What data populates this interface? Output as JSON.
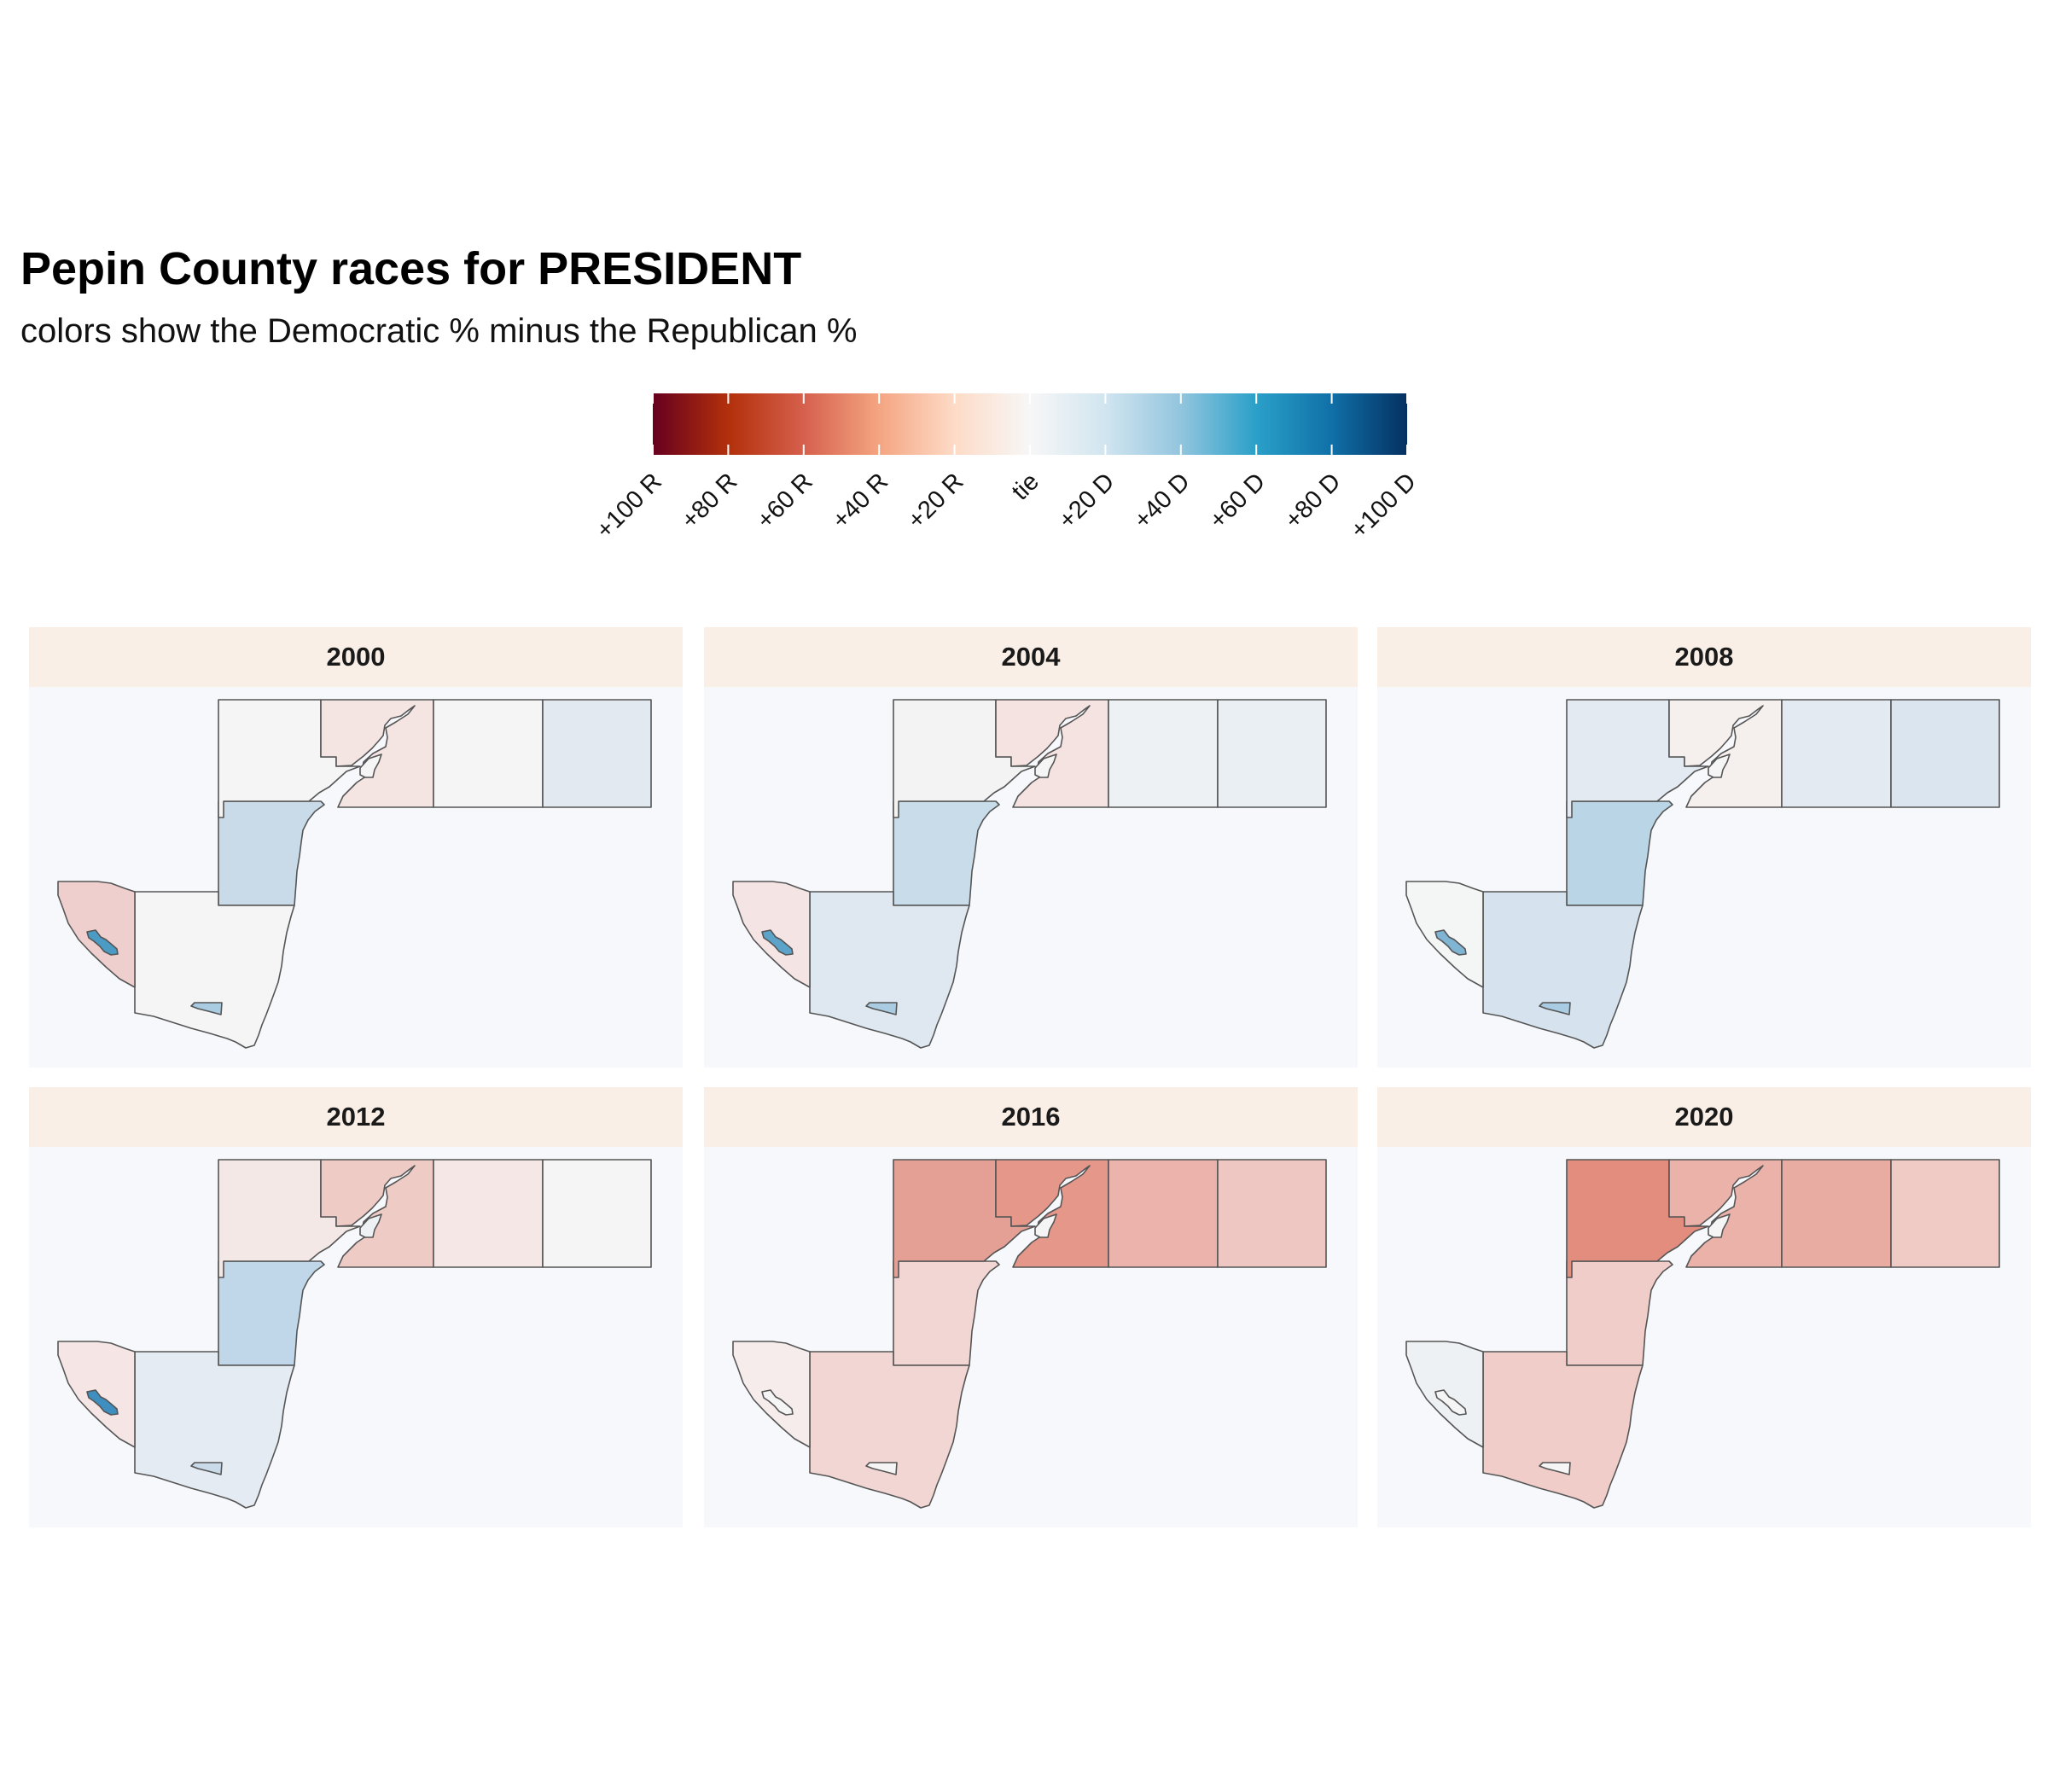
{
  "title": "Pepin County races for PRESIDENT",
  "subtitle": "colors show the Democratic % minus the Republican %",
  "legend": {
    "ticks": [
      {
        "label": "+100 R",
        "margin": -100
      },
      {
        "label": "+80 R",
        "margin": -80
      },
      {
        "label": "+60 R",
        "margin": -60
      },
      {
        "label": "+40 R",
        "margin": -40
      },
      {
        "label": "+20 R",
        "margin": -20
      },
      {
        "label": "tie",
        "margin": 0
      },
      {
        "label": "+20 D",
        "margin": 20
      },
      {
        "label": "+40 D",
        "margin": 40
      },
      {
        "label": "+60 D",
        "margin": 60
      },
      {
        "label": "+80 D",
        "margin": 80
      },
      {
        "label": "+100 D",
        "margin": 100
      }
    ],
    "color_stops": [
      "#67001f",
      "#b2300b",
      "#d6604d",
      "#f4a582",
      "#fddbc7",
      "#f7f7f7",
      "#d1e5f0",
      "#92c5de",
      "#2aa0c8",
      "#1070a8",
      "#053061"
    ]
  },
  "units": [
    "north-west",
    "north-central",
    "pepin-village-top",
    "north-east-1",
    "north-east-2",
    "central-west",
    "south-west",
    "south-west-village",
    "south-central",
    "durand-city"
  ],
  "panels": [
    {
      "year": "2000",
      "colors": {
        "north-west": "#f6f5f5",
        "north-central": "#f4e4e2",
        "pepin-village-top": "#f5f5f5",
        "north-east-1": "#f6f5f5",
        "north-east-2": "#e2e9f1",
        "central-west": "#c9dbe9",
        "south-west": "#efcfcd",
        "south-west-village": "#4b9bc4",
        "south-central": "#f6f5f5",
        "durand-city": "#a9cce2"
      }
    },
    {
      "year": "2004",
      "colors": {
        "north-west": "#f3f3f3",
        "north-central": "#f4e3e1",
        "pepin-village-top": "#f5f5f5",
        "north-east-1": "#eef1f4",
        "north-east-2": "#eaeff4",
        "central-west": "#c8dce9",
        "south-west": "#f4e4e4",
        "south-west-village": "#5ba3c8",
        "south-central": "#dfe8f0",
        "durand-city": "#a9cce2"
      }
    },
    {
      "year": "2008",
      "colors": {
        "north-west": "#e4eaf1",
        "north-central": "#f5efed",
        "pepin-village-top": "#f5f5f5",
        "north-east-1": "#e4eaf1",
        "north-east-2": "#dae5ef",
        "central-west": "#b9d5e6",
        "south-west": "#f4f5f5",
        "south-west-village": "#7fb4d3",
        "south-central": "#d6e3ee",
        "durand-city": "#a9cce2"
      }
    },
    {
      "year": "2012",
      "colors": {
        "north-west": "#f4e8e7",
        "north-central": "#efcbc6",
        "pepin-village-top": "#eef1f4",
        "north-east-1": "#f5e7e6",
        "north-east-2": "#f5f5f5",
        "central-west": "#bfd7e8",
        "south-west": "#f5e6e5",
        "south-west-village": "#3e8fbf",
        "south-central": "#e4ebf2",
        "durand-city": "#c9dbe9"
      }
    },
    {
      "year": "2016",
      "colors": {
        "north-west": "#e5a095",
        "north-central": "#e5978a",
        "pepin-village-top": "#f5f5f5",
        "north-east-1": "#ebb3ab",
        "north-east-2": "#efc7c2",
        "central-west": "#f1d6d3",
        "south-west": "#f6eceb",
        "south-west-village": "#f5f5f5",
        "south-central": "#f1d6d3",
        "durand-city": "#f5f5f5"
      }
    },
    {
      "year": "2020",
      "colors": {
        "north-west": "#e28d7d",
        "north-central": "#ebb2aa",
        "pepin-village-top": "#f5f5f5",
        "north-east-1": "#e9aca3",
        "north-east-2": "#f0cbc6",
        "central-west": "#f0cdc8",
        "south-west": "#edf1f4",
        "south-west-village": "#f5f5f5",
        "south-central": "#f0cdc8",
        "durand-city": "#f5f5f5"
      }
    }
  ]
}
